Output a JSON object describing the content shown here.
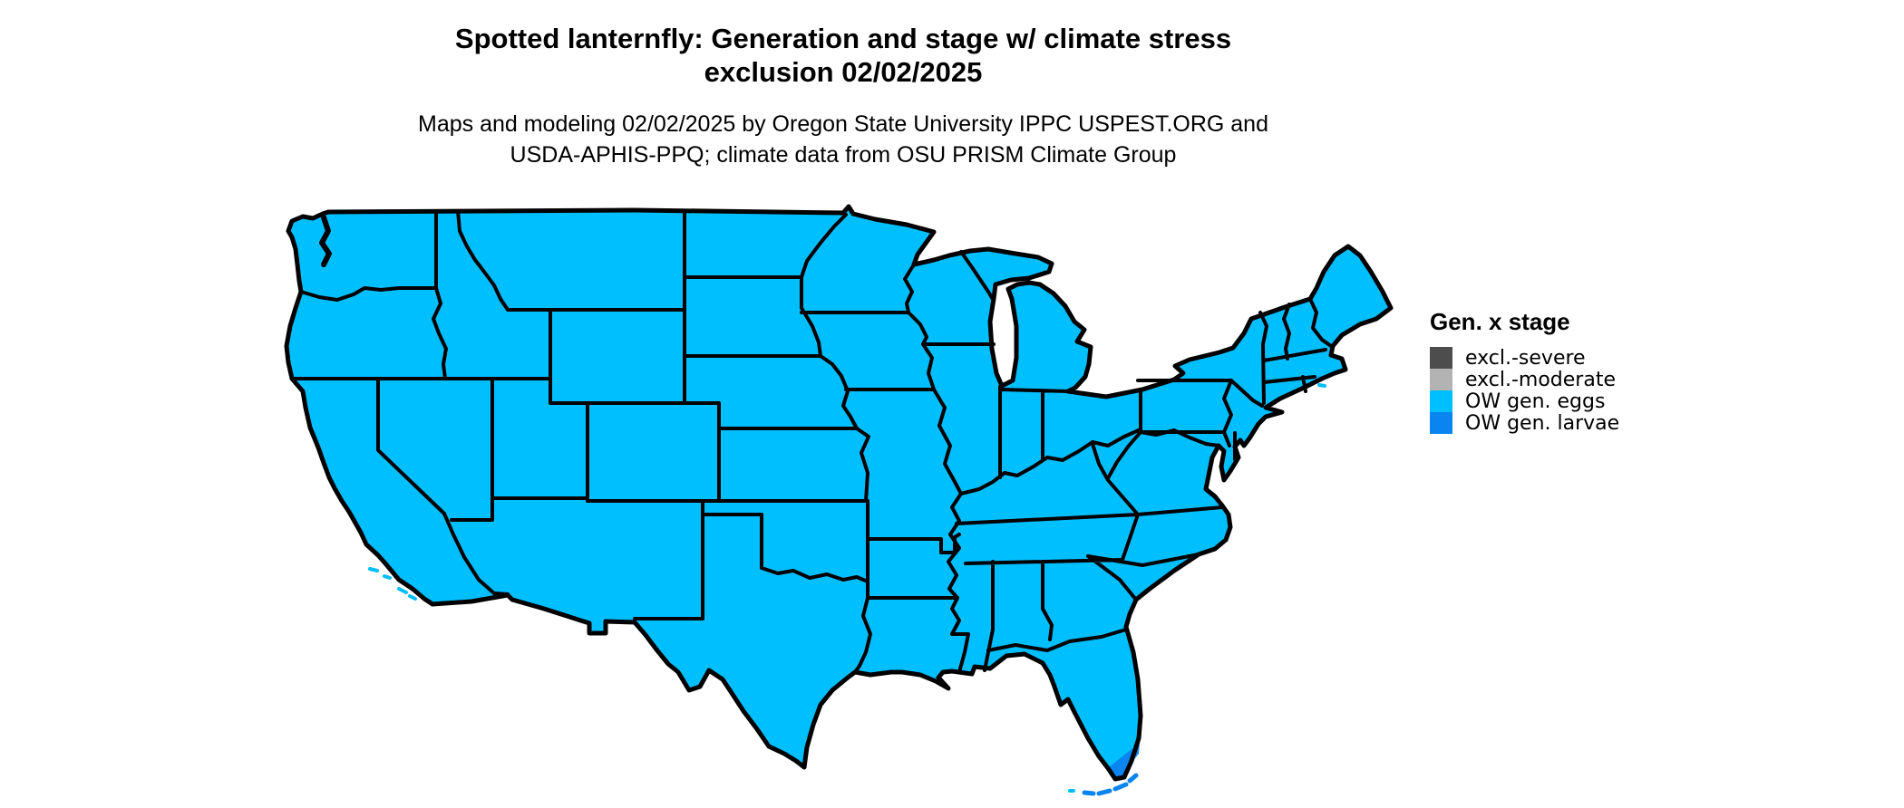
{
  "title": {
    "line1": "Spotted lanternfly: Generation and stage w/ climate stress",
    "line2": "exclusion 02/02/2025"
  },
  "subtitle": {
    "line1": "Maps and modeling 02/02/2025 by Oregon State University IPPC USPEST.ORG and",
    "line2": "USDA-APHIS-PPQ; climate data from OSU PRISM Climate Group"
  },
  "legend": {
    "title": "Gen. x stage",
    "items": [
      {
        "label": "excl.-severe",
        "color": "#4D4D4D"
      },
      {
        "label": "excl.-moderate",
        "color": "#B3B3B3"
      },
      {
        "label": "OW gen. eggs",
        "color": "#00BFFF"
      },
      {
        "label": "OW gen. larvae",
        "color": "#0A84EE"
      }
    ]
  },
  "map": {
    "region": "Contiguous United States",
    "date_shown": "02/02/2025",
    "colors": {
      "eggs": "#00BFFF",
      "larvae": "#0A84EE",
      "excl_severe": "#4D4D4D",
      "excl_moderate": "#B3B3B3",
      "border": "#000000",
      "background": "#FFFFFF"
    },
    "regions": [
      {
        "name": "conus-landmass",
        "category": "OW gen. eggs"
      },
      {
        "name": "south-florida-tip",
        "category": "OW gen. larvae"
      },
      {
        "name": "florida-keys",
        "category": "OW gen. larvae"
      },
      {
        "name": "channel-islands",
        "category": "OW gen. eggs"
      },
      {
        "name": "maine-coast-islets",
        "category": "OW gen. eggs"
      }
    ]
  }
}
